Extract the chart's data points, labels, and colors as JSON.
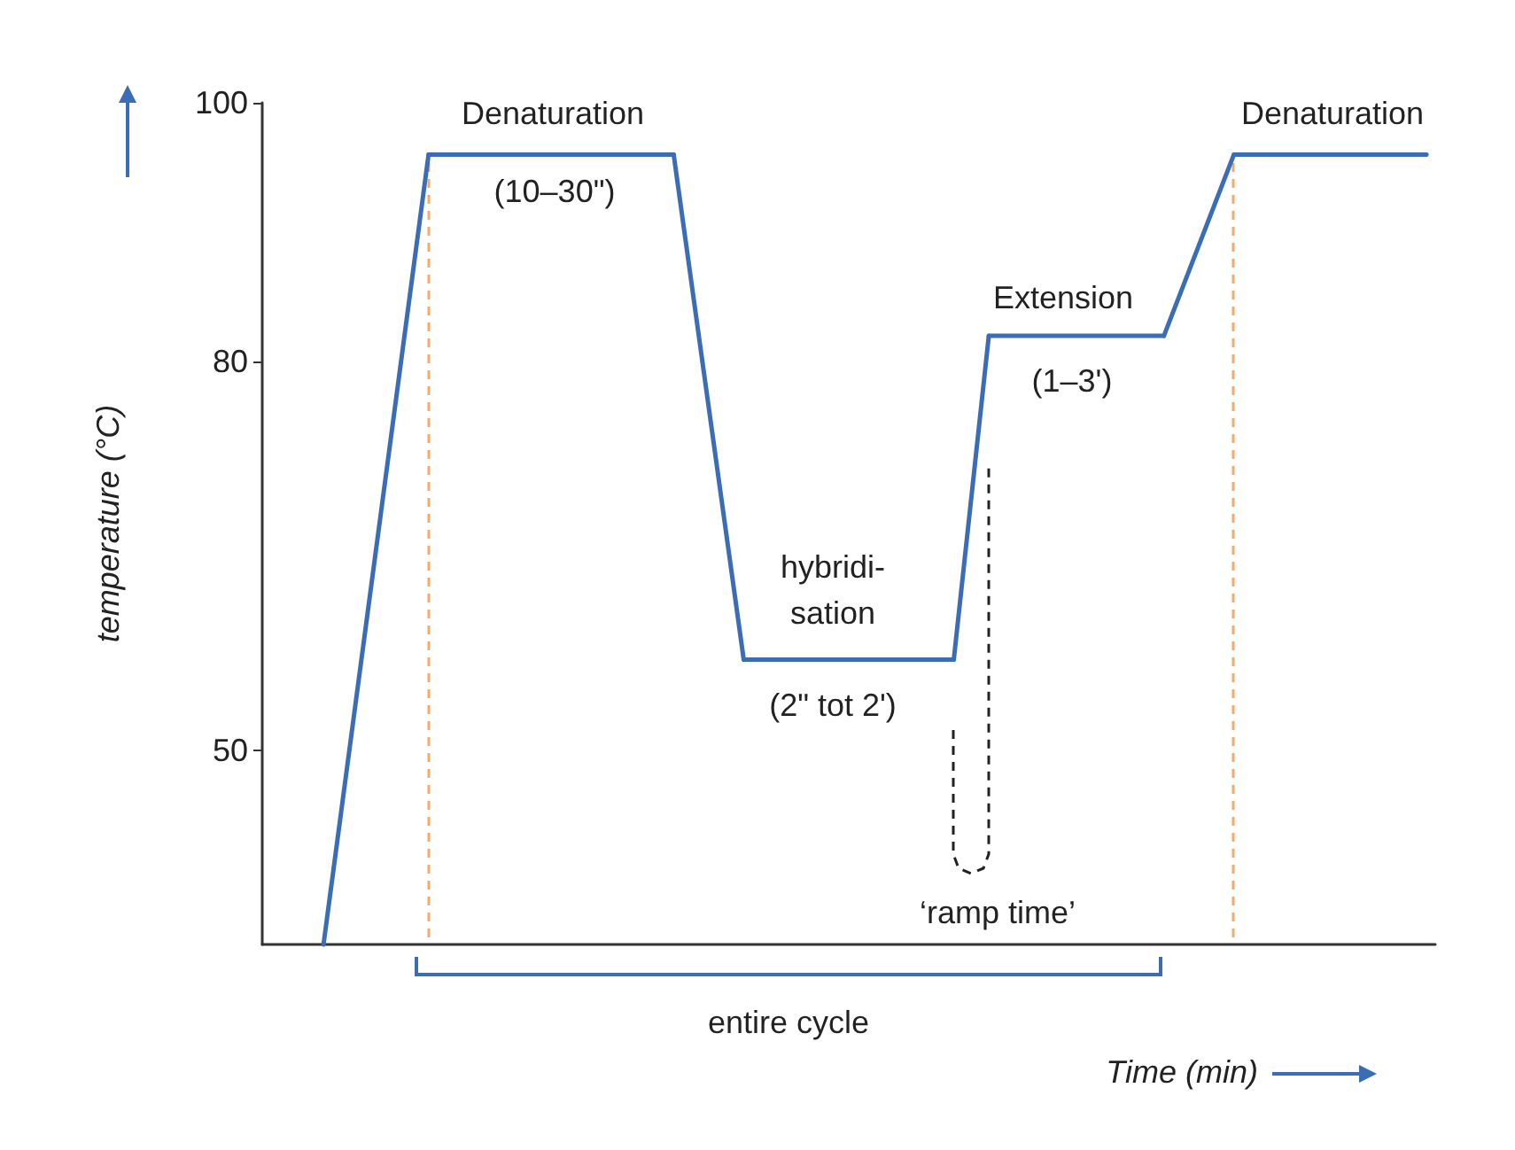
{
  "chart_data": {
    "type": "line",
    "xlabel": "Time (min)",
    "ylabel": "temperature (°C)",
    "categories": [
      null,
      null,
      null,
      null,
      null,
      null,
      null,
      null,
      null,
      null,
      null,
      null,
      null,
      null,
      null,
      null,
      null,
      null,
      null,
      null,
      null,
      null,
      null,
      null,
      null,
      null,
      null,
      null,
      null,
      null,
      null,
      null,
      null,
      null,
      null,
      null,
      null,
      null,
      null,
      null,
      null,
      null,
      null,
      null,
      null,
      null,
      null,
      null,
      null,
      null,
      null,
      null,
      null,
      null,
      null,
      null,
      null,
      null,
      null,
      null,
      null,
      null,
      null,
      null,
      null,
      null,
      null
    ],
    "series": [
      {
        "color": "#3a6db5",
        "values": [
          null,
          null,
          null,
          35,
          null,
          null,
          null,
          null,
          null,
          96,
          null,
          null,
          null,
          null,
          null,
          null,
          null,
          null,
          null,
          null,
          null,
          null,
          null,
          96,
          null,
          null,
          null,
          57,
          null,
          null,
          null,
          null,
          null,
          null,
          null,
          null,
          null,
          null,
          null,
          57,
          null,
          82,
          null,
          null,
          null,
          null,
          null,
          null,
          null,
          null,
          null,
          82,
          null,
          null,
          null,
          96,
          null,
          null,
          null,
          null,
          null,
          null,
          null,
          null,
          null,
          null,
          96
        ]
      }
    ],
    "ylim": [
      35,
      100
    ],
    "yticks": [
      50,
      80,
      100
    ],
    "grid": false,
    "marker": "none",
    "tick_labels": "y",
    "annotations": [
      "Denaturation",
      "(10–30\")",
      "hybridi-\nsation",
      "(2\" tot 2')",
      "Extension",
      "(1–3')",
      "‘ramp time’",
      "entire cycle",
      "Denaturation"
    ]
  }
}
